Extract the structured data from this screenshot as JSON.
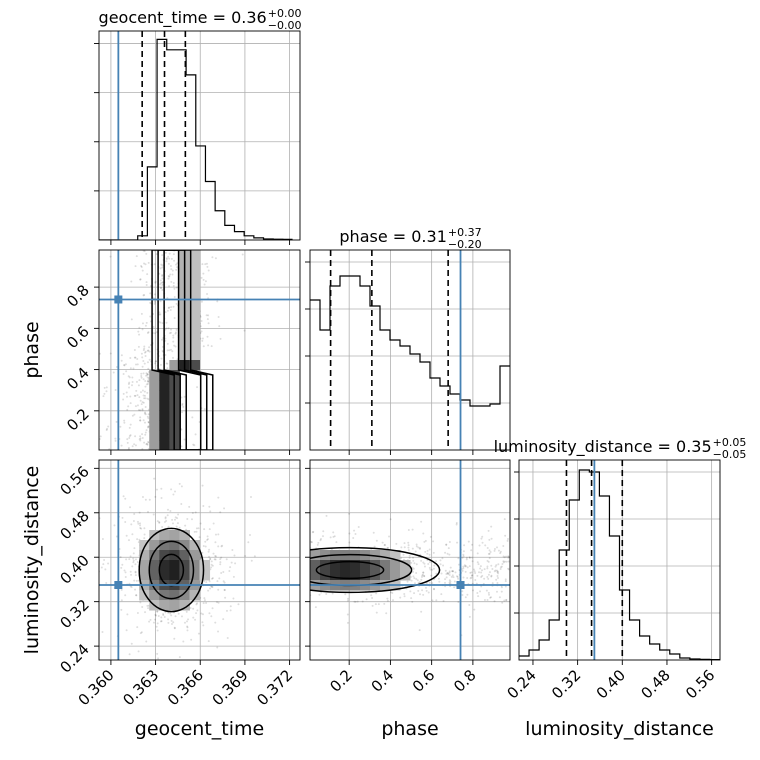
{
  "chart_data": {
    "type": "corner",
    "parameters": [
      {
        "name": "geocent_time",
        "range": [
          0.3592,
          0.3727
        ],
        "ticks": [
          "0.360",
          "0.363",
          "0.366",
          "0.369",
          "0.372"
        ],
        "tick_values": [
          0.36,
          0.363,
          0.366,
          0.369,
          0.372
        ],
        "median": 0.36,
        "plus": "0.00",
        "minus": "0.00",
        "title_main": "geocent_time = 0.36",
        "quantiles": [
          0.3621,
          0.3636,
          0.365
        ],
        "truth": 0.3605
      },
      {
        "name": "phase",
        "range": [
          0.01,
          0.98
        ],
        "ticks": [
          "0.2",
          "0.4",
          "0.6",
          "0.8"
        ],
        "tick_values": [
          0.2,
          0.4,
          0.6,
          0.8
        ],
        "median": 0.31,
        "plus": "0.37",
        "minus": "0.20",
        "title_main": "phase = 0.31",
        "quantiles": [
          0.11,
          0.31,
          0.68
        ],
        "truth": 0.74
      },
      {
        "name": "luminosity_distance",
        "range": [
          0.215,
          0.575
        ],
        "ticks": [
          "0.24",
          "0.32",
          "0.40",
          "0.48",
          "0.56"
        ],
        "tick_values": [
          0.24,
          0.32,
          0.4,
          0.48,
          0.56
        ],
        "median": 0.35,
        "plus": "0.05",
        "minus": "0.05",
        "title_main": "luminosity_distance = 0.35",
        "quantiles": [
          0.3,
          0.345,
          0.4
        ],
        "truth": 0.35
      }
    ],
    "histograms": [
      {
        "param": "geocent_time",
        "edges_start": 0.3592,
        "bin_width": 0.00065,
        "counts": [
          0,
          0,
          0,
          0,
          0.02,
          0.35,
          0.96,
          0.91,
          0.91,
          0.79,
          0.45,
          0.28,
          0.14,
          0.07,
          0.04,
          0.02,
          0.01,
          0.005,
          0.004,
          0.003
        ]
      },
      {
        "param": "phase",
        "edges_start": 0.01,
        "bin_width": 0.0485,
        "counts": [
          0.75,
          0.6,
          0.82,
          0.87,
          0.87,
          0.82,
          0.72,
          0.6,
          0.55,
          0.52,
          0.48,
          0.44,
          0.36,
          0.32,
          0.28,
          0.25,
          0.22,
          0.22,
          0.23,
          0.42
        ]
      },
      {
        "param": "luminosity_distance",
        "edges_start": 0.215,
        "bin_width": 0.018,
        "counts": [
          0.02,
          0.05,
          0.1,
          0.2,
          0.55,
          0.8,
          0.95,
          0.94,
          0.82,
          0.62,
          0.35,
          0.2,
          0.12,
          0.08,
          0.05,
          0.03,
          0.01,
          0.005,
          0.003,
          0.002
        ]
      }
    ],
    "truth_color": "#4682b4",
    "grid": true
  }
}
